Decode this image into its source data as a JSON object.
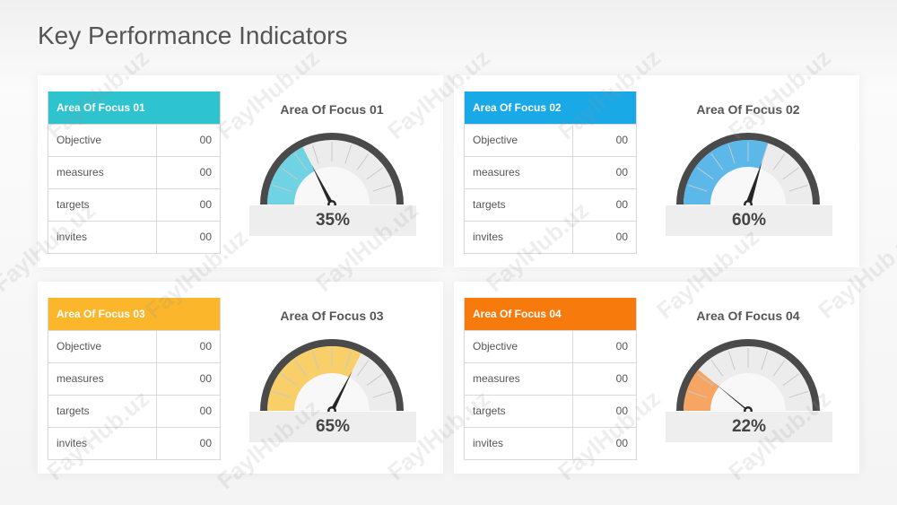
{
  "title": "Key Performance Indicators",
  "watermark": "FaylHub.uz",
  "chart_data": [
    {
      "type": "gauge",
      "header": "Area Of Focus 01",
      "title": "Area Of Focus 01",
      "color": "#2ec4cf",
      "fill_color": "#6fd3e3",
      "value": 35,
      "value_label": "35%",
      "ylim": [
        0,
        100
      ],
      "rows": [
        {
          "label": "Objective",
          "value": "00"
        },
        {
          "label": "measures",
          "value": "00"
        },
        {
          "label": "targets",
          "value": "00"
        },
        {
          "label": "invites",
          "value": "00"
        }
      ]
    },
    {
      "type": "gauge",
      "header": "Area Of Focus 02",
      "title": "Area Of Focus 02",
      "color": "#19a9e6",
      "fill_color": "#5cb8e8",
      "value": 60,
      "value_label": "60%",
      "ylim": [
        0,
        100
      ],
      "rows": [
        {
          "label": "Objective",
          "value": "00"
        },
        {
          "label": "measures",
          "value": "00"
        },
        {
          "label": "targets",
          "value": "00"
        },
        {
          "label": "invites",
          "value": "00"
        }
      ]
    },
    {
      "type": "gauge",
      "header": "Area Of Focus 03",
      "title": "Area Of Focus 03",
      "color": "#fbb62b",
      "fill_color": "#f9cf6a",
      "value": 65,
      "value_label": "65%",
      "ylim": [
        0,
        100
      ],
      "rows": [
        {
          "label": "Objective",
          "value": "00"
        },
        {
          "label": "measures",
          "value": "00"
        },
        {
          "label": "targets",
          "value": "00"
        },
        {
          "label": "invites",
          "value": "00"
        }
      ]
    },
    {
      "type": "gauge",
      "header": "Area Of Focus 04",
      "title": "Area Of Focus 04",
      "color": "#f77a0d",
      "fill_color": "#f6a562",
      "value": 22,
      "value_label": "22%",
      "ylim": [
        0,
        100
      ],
      "rows": [
        {
          "label": "Objective",
          "value": "00"
        },
        {
          "label": "measures",
          "value": "00"
        },
        {
          "label": "targets",
          "value": "00"
        },
        {
          "label": "invites",
          "value": "00"
        }
      ]
    }
  ]
}
